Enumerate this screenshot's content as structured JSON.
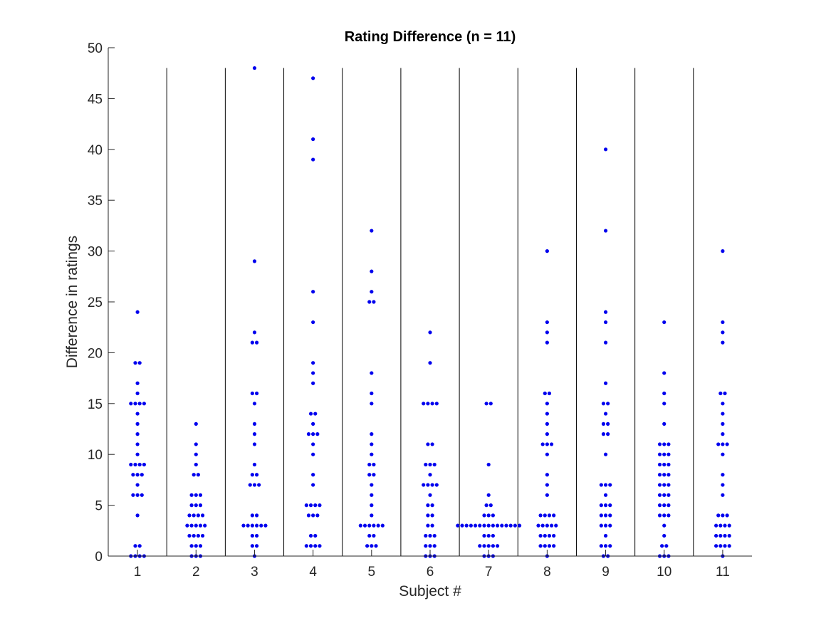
{
  "chart_data": {
    "type": "scatter",
    "title": "Rating Difference (n = 11)",
    "xlabel": "Subject #",
    "ylabel": "Difference in ratings",
    "ylim": [
      0,
      50
    ],
    "xlim": [
      0.5,
      11.5
    ],
    "grid": false,
    "x_ticks": [
      "1",
      "2",
      "3",
      "4",
      "5",
      "6",
      "7",
      "8",
      "9",
      "10",
      "11"
    ],
    "y_ticks": [
      "0",
      "5",
      "10",
      "15",
      "20",
      "25",
      "30",
      "35",
      "40",
      "45",
      "50"
    ],
    "separators": {
      "x": [
        1.5,
        2.5,
        3.5,
        4.5,
        5.5,
        6.5,
        7.5,
        8.5,
        9.5,
        10.5
      ],
      "top": 48
    },
    "marker_color": "#0000ee",
    "series": [
      {
        "x": 1,
        "values": [
          0,
          0,
          0,
          0,
          1,
          1,
          4,
          6,
          6,
          6,
          7,
          8,
          8,
          8,
          9,
          9,
          9,
          9,
          10,
          11,
          12,
          13,
          14,
          15,
          15,
          15,
          15,
          16,
          17,
          19,
          19,
          24
        ]
      },
      {
        "x": 2,
        "values": [
          0,
          0,
          0,
          1,
          1,
          1,
          2,
          2,
          2,
          2,
          3,
          3,
          3,
          3,
          3,
          4,
          4,
          4,
          4,
          5,
          5,
          5,
          6,
          6,
          6,
          8,
          8,
          9,
          10,
          11,
          13
        ]
      },
      {
        "x": 3,
        "values": [
          0,
          1,
          1,
          2,
          2,
          3,
          3,
          3,
          3,
          3,
          3,
          4,
          4,
          7,
          7,
          7,
          8,
          8,
          9,
          11,
          12,
          13,
          15,
          16,
          16,
          21,
          21,
          22,
          29,
          48
        ]
      },
      {
        "x": 4,
        "values": [
          1,
          1,
          1,
          1,
          2,
          2,
          4,
          4,
          4,
          5,
          5,
          5,
          5,
          7,
          8,
          10,
          11,
          12,
          12,
          12,
          13,
          14,
          14,
          17,
          18,
          19,
          23,
          26,
          39,
          41,
          47
        ]
      },
      {
        "x": 5,
        "values": [
          1,
          1,
          1,
          2,
          2,
          3,
          3,
          3,
          3,
          3,
          3,
          4,
          5,
          6,
          7,
          8,
          8,
          9,
          9,
          10,
          11,
          12,
          15,
          16,
          18,
          25,
          25,
          26,
          28,
          32
        ]
      },
      {
        "x": 6,
        "values": [
          0,
          0,
          0,
          1,
          1,
          1,
          2,
          2,
          2,
          3,
          3,
          4,
          4,
          5,
          5,
          6,
          7,
          7,
          7,
          7,
          8,
          9,
          9,
          9,
          11,
          11,
          15,
          15,
          15,
          15,
          19,
          22
        ]
      },
      {
        "x": 7,
        "values": [
          0,
          0,
          0,
          1,
          1,
          1,
          1,
          1,
          2,
          2,
          2,
          3,
          3,
          3,
          3,
          3,
          3,
          3,
          3,
          3,
          3,
          3,
          3,
          3,
          3,
          3,
          4,
          4,
          4,
          5,
          5,
          6,
          9,
          15,
          15
        ]
      },
      {
        "x": 8,
        "values": [
          0,
          1,
          1,
          1,
          1,
          2,
          2,
          2,
          2,
          3,
          3,
          3,
          3,
          3,
          4,
          4,
          4,
          4,
          6,
          7,
          8,
          10,
          11,
          11,
          11,
          12,
          13,
          14,
          15,
          16,
          16,
          21,
          22,
          23,
          30
        ]
      },
      {
        "x": 9,
        "values": [
          0,
          0,
          1,
          1,
          1,
          2,
          3,
          3,
          3,
          4,
          4,
          4,
          5,
          5,
          5,
          6,
          7,
          7,
          7,
          10,
          12,
          12,
          13,
          13,
          14,
          15,
          15,
          17,
          21,
          23,
          24,
          32,
          40
        ]
      },
      {
        "x": 10,
        "values": [
          0,
          0,
          0,
          1,
          1,
          2,
          3,
          4,
          4,
          4,
          5,
          5,
          5,
          6,
          6,
          6,
          7,
          7,
          7,
          8,
          8,
          8,
          9,
          9,
          9,
          10,
          10,
          10,
          11,
          11,
          11,
          13,
          15,
          16,
          18,
          23
        ]
      },
      {
        "x": 11,
        "values": [
          0,
          1,
          1,
          1,
          1,
          2,
          2,
          2,
          2,
          3,
          3,
          3,
          3,
          4,
          4,
          4,
          6,
          7,
          8,
          10,
          11,
          11,
          11,
          12,
          13,
          14,
          15,
          16,
          16,
          21,
          22,
          23,
          30
        ]
      }
    ]
  }
}
